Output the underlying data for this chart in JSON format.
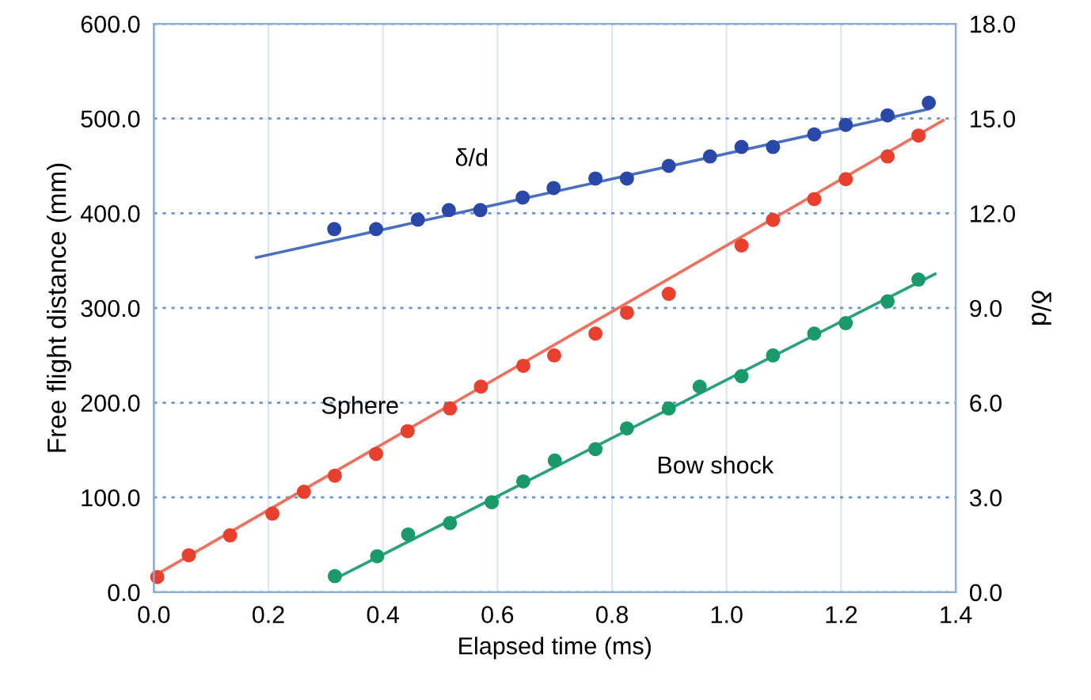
{
  "chart_data": {
    "type": "scatter",
    "xlabel": "Elapsed time (ms)",
    "ylabel": "Free flight distance (mm)",
    "y2label": "δ/d",
    "xlim": [
      0.0,
      1.4
    ],
    "ylim": [
      0.0,
      600.0
    ],
    "y2lim": [
      0.0,
      18.0
    ],
    "xticks": [
      {
        "value": 0,
        "label": "0.0"
      },
      {
        "value": 0.2,
        "label": "0.2"
      },
      {
        "value": 0.4,
        "label": "0.4"
      },
      {
        "value": 0.6,
        "label": "0.6"
      },
      {
        "value": 0.8,
        "label": "0.8"
      },
      {
        "value": 1.0,
        "label": "1.0"
      },
      {
        "value": 1.2,
        "label": "1.2"
      },
      {
        "value": 1.4,
        "label": "1.4"
      }
    ],
    "yticks": [
      {
        "value": 0,
        "label": "0.0"
      },
      {
        "value": 100,
        "label": "100.0"
      },
      {
        "value": 200,
        "label": "200.0"
      },
      {
        "value": 300,
        "label": "300.0"
      },
      {
        "value": 400,
        "label": "400.0"
      },
      {
        "value": 500,
        "label": "500.0"
      },
      {
        "value": 600,
        "label": "600.0"
      }
    ],
    "y2ticks": [
      {
        "value": 0,
        "label": "0.0"
      },
      {
        "value": 3,
        "label": "3.0"
      },
      {
        "value": 6,
        "label": "6.0"
      },
      {
        "value": 9,
        "label": "9.0"
      },
      {
        "value": 12,
        "label": "12.0"
      },
      {
        "value": 15,
        "label": "15.0"
      },
      {
        "value": 18,
        "label": "18.0"
      }
    ],
    "grid": true,
    "marker": "circle",
    "legend": false,
    "series": [
      {
        "name": "δ/d",
        "axis": "y2",
        "color": "#2a48a8",
        "x": [
          0.315,
          0.388,
          0.461,
          0.515,
          0.57,
          0.644,
          0.698,
          0.771,
          0.826,
          0.899,
          0.971,
          1.026,
          1.081,
          1.153,
          1.208,
          1.281,
          1.353
        ],
        "values": [
          11.5,
          11.5,
          11.8,
          12.1,
          12.1,
          12.5,
          12.8,
          13.1,
          13.1,
          13.5,
          13.8,
          14.1,
          14.1,
          14.5,
          14.8,
          15.1,
          15.5
        ]
      },
      {
        "type": "line",
        "marker": "none",
        "axis": "y2",
        "color": "#4a6fc0",
        "x": [
          0.179,
          1.353
        ],
        "values": [
          10.6,
          15.3
        ]
      },
      {
        "name": "Sphere",
        "color": "#e8402e",
        "x": [
          0.006,
          0.061,
          0.133,
          0.207,
          0.262,
          0.316,
          0.388,
          0.443,
          0.517,
          0.571,
          0.645,
          0.699,
          0.771,
          0.826,
          0.899,
          1.026,
          1.081,
          1.153,
          1.208,
          1.281,
          1.335
        ],
        "values": [
          16,
          39,
          60,
          83,
          106,
          123,
          146,
          170,
          194,
          217,
          239,
          250,
          273,
          295,
          315,
          366,
          393,
          415,
          436,
          460,
          482
        ]
      },
      {
        "type": "line",
        "marker": "none",
        "color": "#f07060",
        "x": [
          0.0,
          1.378
        ],
        "values": [
          17,
          498
        ]
      },
      {
        "name": "Bow shock",
        "color": "#1a9a6a",
        "x": [
          0.316,
          0.39,
          0.444,
          0.517,
          0.59,
          0.645,
          0.7,
          0.771,
          0.826,
          0.899,
          0.953,
          1.026,
          1.081,
          1.153,
          1.208,
          1.281,
          1.335
        ],
        "values": [
          17,
          38,
          61,
          73,
          95,
          117,
          139,
          151,
          173,
          194,
          217,
          228,
          250,
          273,
          284,
          307,
          330
        ]
      },
      {
        "type": "line",
        "marker": "none",
        "color": "#2aa080",
        "x": [
          0.316,
          1.364
        ],
        "values": [
          14,
          336
        ]
      }
    ]
  }
}
